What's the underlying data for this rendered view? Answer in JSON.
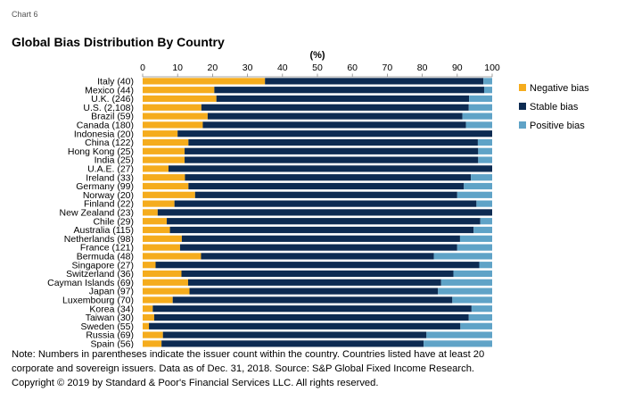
{
  "header": {
    "chart_label": "Chart 6",
    "title": "Global Bias Distribution By Country"
  },
  "chart_data": {
    "type": "bar",
    "orientation": "horizontal",
    "stacked": true,
    "title": "Global Bias Distribution By Country",
    "xlabel": "(%)",
    "xlim": [
      0,
      100
    ],
    "xticks": [
      0,
      10,
      20,
      30,
      40,
      50,
      60,
      70,
      80,
      90,
      100
    ],
    "x_axis_position": "top",
    "grid": false,
    "legend_position": "right",
    "categories": [
      "Italy (40)",
      "Mexico (44)",
      "U.K. (246)",
      "U.S. (2,108)",
      "Brazil (59)",
      "Canada (180)",
      "Indonesia (20)",
      "China (122)",
      "Hong Kong (25)",
      "India (25)",
      "U.A.E. (27)",
      "Ireland (33)",
      "Germany (99)",
      "Norway (20)",
      "Finland (22)",
      "New Zealand (23)",
      "Chile (29)",
      "Australia (115)",
      "Netherlands (98)",
      "France (121)",
      "Bermuda (48)",
      "Singapore (27)",
      "Switzerland (36)",
      "Cayman Islands (69)",
      "Japan (97)",
      "Luxembourg (70)",
      "Korea (34)",
      "Taiwan (30)",
      "Sweden (55)",
      "Russia (69)",
      "Spain (56)"
    ],
    "series": [
      {
        "name": "Negative bias",
        "color": "#F5AC1D",
        "values": [
          35.0,
          20.5,
          21.1,
          16.8,
          18.6,
          17.2,
          10.0,
          13.1,
          12.0,
          12.0,
          7.4,
          12.1,
          13.1,
          15.0,
          9.1,
          4.3,
          6.9,
          7.8,
          11.2,
          10.7,
          16.7,
          3.7,
          11.1,
          13.0,
          13.4,
          8.6,
          2.9,
          3.3,
          1.8,
          5.8,
          5.4
        ]
      },
      {
        "name": "Stable bias",
        "color": "#0D2B52",
        "values": [
          62.5,
          77.2,
          72.3,
          76.5,
          72.9,
          75.3,
          90.0,
          82.8,
          84.0,
          84.0,
          92.6,
          81.8,
          78.8,
          75.0,
          86.4,
          95.7,
          89.7,
          86.9,
          79.6,
          79.3,
          66.6,
          92.6,
          77.8,
          72.4,
          71.1,
          80.0,
          91.2,
          90.0,
          89.1,
          75.4,
          75.0
        ]
      },
      {
        "name": "Positive bias",
        "color": "#5FA3C7",
        "values": [
          2.5,
          2.3,
          6.6,
          6.7,
          8.5,
          7.5,
          0.0,
          4.1,
          4.0,
          4.0,
          0.0,
          6.1,
          8.1,
          10.0,
          4.5,
          0.0,
          3.4,
          5.3,
          9.2,
          10.0,
          16.7,
          3.7,
          11.1,
          14.6,
          15.5,
          11.4,
          5.9,
          6.7,
          9.1,
          18.8,
          19.6
        ]
      }
    ]
  },
  "note": {
    "line1": "Note: Numbers in parentheses indicate the issuer count within the country. Countries listed have at least 20",
    "line2": "corporate and sovereign issuers. Data as of Dec. 31, 2018.  Source: S&P Global Fixed Income Research.",
    "line3": "Copyright © 2019 by Standard & Poor's Financial Services LLC. All rights reserved."
  }
}
